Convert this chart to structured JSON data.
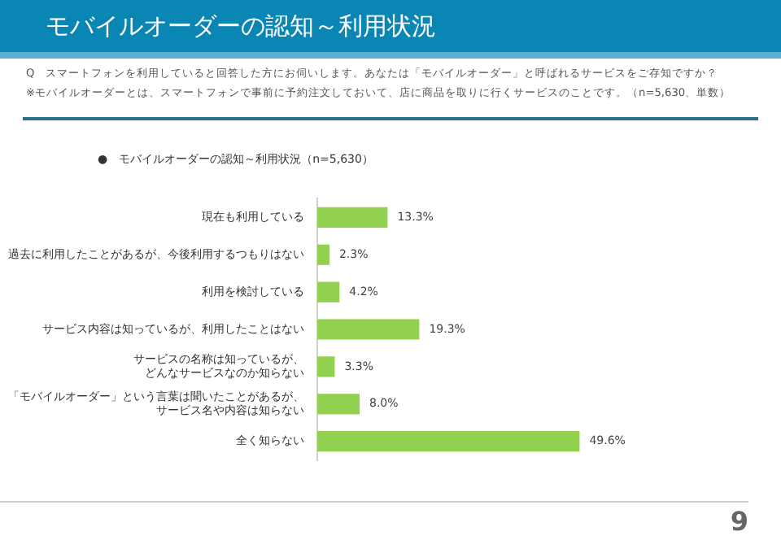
{
  "chart_data": {
    "type": "bar",
    "orientation": "horizontal",
    "title": "モバイルオーダーの認知～利用状況",
    "subtitle": "Q　スマートフォンを利用していると回答した方にお伺いします。あなたは「モバイルオーダー」と呼ばれるサービスをご存知ですか？",
    "annotations": [
      "※モバイルオーダーとは、スマートフォンで事前に予約注文しておいて、店に商品を取りに行くサービスのことです。（n=5,630、単数）",
      "●　モバイルオーダーの認知～利用状況（n=5,630）",
      "9"
    ],
    "categories": [
      "現在も利用している",
      "過去に利用したことがあるが、今後利用するつもりはない",
      "利用を検討している",
      "サービス内容は知っているが、利用したことはない",
      "サービスの名称は知っているが、どんなサービスなのか知らない",
      "「モバイルオーダー」という言葉は聞いたことがあるが、サービス名や内容は知らない",
      "全く知らない"
    ],
    "values": [
      13.3,
      2.3,
      4.2,
      19.3,
      3.3,
      8.0,
      49.6
    ],
    "value_labels": [
      "13.3%",
      "2.3%",
      "4.2%",
      "19.3%",
      "3.3%",
      "8.0%",
      "49.6%"
    ],
    "color": "#92d050",
    "legend": false,
    "tick_labels": "y"
  }
}
